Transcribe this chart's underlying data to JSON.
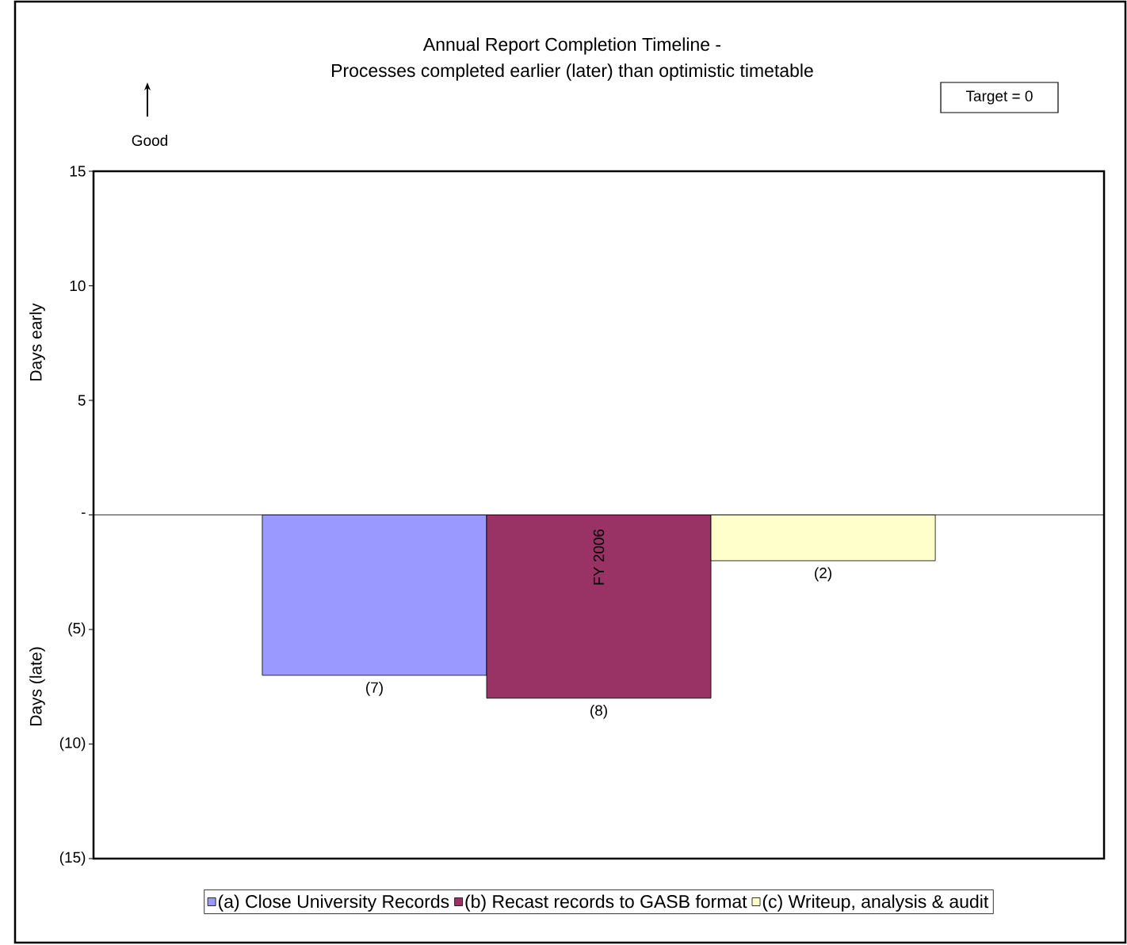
{
  "chart_data": {
    "type": "bar",
    "title": "Annual Report Completion Timeline -",
    "subtitle": "Processes completed earlier (later) than optimistic timetable",
    "ylabel": "Days early",
    "annotations": [
      "Days (late)",
      "Good",
      "Target = 0"
    ],
    "categories": [
      "FY 2006"
    ],
    "series": [
      {
        "name": "(a) Close University Records",
        "color": "#9999ff",
        "values": [
          -7
        ],
        "value_labels": [
          "(7)"
        ]
      },
      {
        "name": "(b) Recast records to GASB format",
        "color": "#993366",
        "values": [
          -8
        ],
        "value_labels": [
          "(8)"
        ]
      },
      {
        "name": "(c) Writeup, analysis & audit",
        "color": "#ffffcc",
        "values": [
          -2
        ],
        "value_labels": [
          "(2)"
        ]
      }
    ],
    "ylim": [
      -15,
      15
    ],
    "yticks": [
      {
        "value": -15,
        "label": "(15)"
      },
      {
        "value": -10,
        "label": "(10)"
      },
      {
        "value": -5,
        "label": "(5)"
      },
      {
        "value": 0,
        "label": "-"
      },
      5,
      10,
      15
    ],
    "ref_lines": [
      {
        "axis": "y",
        "value": 0
      }
    ],
    "legend": "bottom"
  }
}
